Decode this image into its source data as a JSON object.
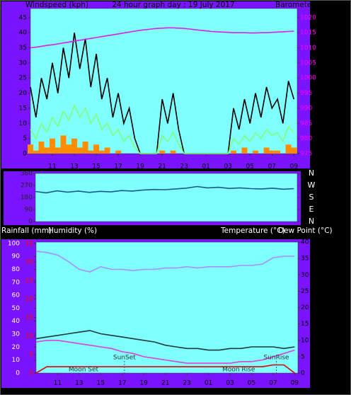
{
  "chart_data": [
    {
      "type": "line",
      "title": "24 hour graph day : 19 July 2017",
      "y_label": "Windspeed (kph)",
      "y2_label": "Barometer (hpa)",
      "xlim": [
        0,
        24.3
      ],
      "xticks": [
        {
          "value": 2,
          "label": "11"
        },
        {
          "value": 4,
          "label": "13"
        },
        {
          "value": 6,
          "label": "15"
        },
        {
          "value": 8,
          "label": "17"
        },
        {
          "value": 10,
          "label": "19"
        },
        {
          "value": 12,
          "label": "21"
        },
        {
          "value": 14,
          "label": "23"
        },
        {
          "value": 16,
          "label": "01"
        },
        {
          "value": 18,
          "label": "03"
        },
        {
          "value": 20,
          "label": "05"
        },
        {
          "value": 22,
          "label": "07"
        },
        {
          "value": 24,
          "label": "09"
        }
      ],
      "ylim": [
        0,
        48
      ],
      "yticks": [
        0,
        5,
        10,
        15,
        20,
        25,
        30,
        35,
        40,
        45
      ],
      "y2lim": [
        975,
        1023
      ],
      "y2ticks": [
        975,
        980,
        985,
        990,
        995,
        1000,
        1005,
        1010,
        1015,
        1020
      ],
      "x": [
        0,
        0.5,
        1,
        1.5,
        2,
        2.5,
        3,
        3.5,
        4,
        4.5,
        5,
        5.5,
        6,
        6.5,
        7,
        7.5,
        8,
        8.5,
        9,
        9.5,
        10,
        10.5,
        11,
        11.5,
        12,
        12.5,
        13,
        13.5,
        14,
        14.5,
        15,
        15.5,
        16,
        16.5,
        17,
        17.5,
        18,
        18.5,
        19,
        19.5,
        20,
        20.5,
        21,
        21.5,
        22,
        22.5,
        23,
        23.5,
        24
      ],
      "series": [
        {
          "color": "#000000",
          "style": "line",
          "axis": "y",
          "values": [
            22,
            12,
            25,
            18,
            30,
            20,
            35,
            25,
            40,
            28,
            38,
            22,
            33,
            18,
            25,
            12,
            20,
            10,
            15,
            5,
            0,
            0,
            0,
            0,
            18,
            10,
            20,
            8,
            0,
            0,
            0,
            0,
            0,
            0,
            0,
            0,
            0,
            15,
            8,
            18,
            10,
            20,
            12,
            22,
            15,
            18,
            10,
            24,
            18
          ]
        },
        {
          "color": "#80ff80",
          "style": "line",
          "axis": "y",
          "values": [
            8,
            5,
            10,
            7,
            12,
            9,
            14,
            11,
            16,
            12,
            15,
            10,
            13,
            8,
            10,
            6,
            8,
            4,
            6,
            2,
            0,
            0,
            0,
            0,
            6,
            4,
            7,
            3,
            0,
            0,
            0,
            0,
            0,
            0,
            0,
            0,
            0,
            5,
            3,
            6,
            4,
            7,
            5,
            8,
            6,
            7,
            4,
            9,
            7
          ]
        },
        {
          "color": "#ff8c00",
          "style": "bar",
          "axis": "y",
          "values": [
            3,
            1,
            4,
            2,
            5,
            2,
            6,
            3,
            5,
            2,
            4,
            1,
            3,
            1,
            2,
            0,
            1,
            0,
            0,
            0,
            0,
            0,
            0,
            0,
            1,
            0,
            1,
            0,
            0,
            0,
            0,
            0,
            0,
            0,
            0,
            0,
            0,
            1,
            0,
            2,
            0,
            1,
            0,
            2,
            1,
            1,
            0,
            3,
            2
          ]
        },
        {
          "color": "#e020e0",
          "style": "line",
          "axis": "y2",
          "values": [
            1010.0,
            1010.2,
            1010.5,
            1010.8,
            1011.0,
            1011.3,
            1011.6,
            1011.9,
            1012.2,
            1012.5,
            1012.8,
            1013.1,
            1013.4,
            1013.7,
            1014.0,
            1014.3,
            1014.6,
            1014.9,
            1015.2,
            1015.5,
            1015.8,
            1016.0,
            1016.2,
            1016.4,
            1016.5,
            1016.6,
            1016.6,
            1016.5,
            1016.4,
            1016.2,
            1016.0,
            1015.8,
            1015.6,
            1015.4,
            1015.3,
            1015.2,
            1015.1,
            1015.0,
            1015.0,
            1015.0,
            1014.9,
            1014.9,
            1015.0,
            1015.0,
            1015.1,
            1015.2,
            1015.3,
            1015.4,
            1015.5
          ]
        }
      ]
    },
    {
      "type": "line",
      "xlim": [
        0,
        24.3
      ],
      "ylim": [
        0,
        360
      ],
      "yticks": [
        0,
        90,
        180,
        270,
        360
      ],
      "y2lim": [
        0,
        360
      ],
      "y2ticks": [
        {
          "value": 0,
          "label": "N"
        },
        {
          "value": 90,
          "label": "E"
        },
        {
          "value": 180,
          "label": "S"
        },
        {
          "value": 270,
          "label": "W"
        },
        {
          "value": 360,
          "label": "N"
        }
      ],
      "x": [
        0,
        1,
        2,
        3,
        4,
        5,
        6,
        7,
        8,
        9,
        10,
        11,
        12,
        13,
        14,
        15,
        16,
        17,
        18,
        19,
        20,
        21,
        22,
        23,
        24
      ],
      "series": [
        {
          "color": "#1a5a8a",
          "style": "line",
          "axis": "y",
          "values": [
            225,
            215,
            230,
            220,
            228,
            218,
            226,
            222,
            232,
            228,
            236,
            240,
            238,
            244,
            250,
            262,
            252,
            256,
            248,
            252,
            246,
            244,
            250,
            242,
            246
          ]
        }
      ]
    },
    {
      "type": "line",
      "xlim": [
        0,
        24.3
      ],
      "xticks": [
        {
          "value": 2,
          "label": "11"
        },
        {
          "value": 4,
          "label": "13"
        },
        {
          "value": 6,
          "label": "15"
        },
        {
          "value": 8,
          "label": "17"
        },
        {
          "value": 10,
          "label": "19"
        },
        {
          "value": 12,
          "label": "21"
        },
        {
          "value": 14,
          "label": "23"
        },
        {
          "value": 16,
          "label": "01"
        },
        {
          "value": 18,
          "label": "03"
        },
        {
          "value": 20,
          "label": "05"
        },
        {
          "value": 22,
          "label": "07"
        },
        {
          "value": 24,
          "label": "09"
        }
      ],
      "ylim": [
        0,
        101
      ],
      "yticks": [
        0,
        10,
        20,
        30,
        40,
        50,
        60,
        70,
        80,
        90,
        100
      ],
      "y3lim": [
        0,
        35.4
      ],
      "y3ticks": [
        0,
        5,
        10,
        15,
        20,
        25,
        30,
        35
      ],
      "y2lim": [
        0,
        40
      ],
      "y2ticks": [
        0,
        5,
        10,
        15,
        20,
        25,
        30,
        35,
        40
      ],
      "x": [
        0,
        1,
        2,
        3,
        4,
        5,
        6,
        7,
        8,
        9,
        10,
        11,
        12,
        13,
        14,
        15,
        16,
        17,
        18,
        19,
        20,
        21,
        22,
        23,
        24
      ],
      "series": [
        {
          "name": "Rainfall (mm)",
          "color": "#e00000",
          "style": "line",
          "axis": "y3",
          "values": [
            0,
            1.7,
            1.7,
            1.7,
            1.7,
            1.7,
            1.7,
            1.7,
            1.7,
            1.7,
            1.7,
            1.7,
            1.7,
            1.7,
            1.7,
            1.7,
            1.7,
            1.7,
            1.7,
            1.7,
            1.7,
            1.7,
            2.2,
            2.2,
            0
          ]
        },
        {
          "name": "Humidity (%)",
          "color": "#a890ff",
          "style": "line",
          "axis": "y",
          "values": [
            94,
            93,
            91,
            86,
            80,
            78,
            82,
            80,
            80,
            79,
            80,
            80,
            81,
            81,
            82,
            81,
            82,
            82,
            82,
            83,
            83,
            84,
            89,
            90,
            90
          ]
        },
        {
          "name": "Temperature (°C)",
          "color": "#1a3a3a",
          "style": "line",
          "axis": "y2",
          "values": [
            10.5,
            11,
            11.5,
            12,
            12.5,
            13,
            12,
            11.5,
            11,
            10.5,
            10,
            9.5,
            8.5,
            8,
            7.5,
            7.5,
            7,
            7,
            7.5,
            7.5,
            8,
            8,
            8,
            7.5,
            8
          ]
        },
        {
          "name": "Dew Point (°C)",
          "color": "#e040e0",
          "style": "line",
          "axis": "y2",
          "values": [
            9.5,
            10,
            10,
            9.5,
            9,
            8.5,
            8,
            7.5,
            6.5,
            6,
            5,
            4.5,
            4,
            3.5,
            3,
            3,
            3,
            3,
            3,
            3.5,
            3.5,
            4,
            5,
            6,
            7
          ]
        }
      ],
      "annotations": [
        {
          "text": "Moon Set",
          "x": 4.4
        },
        {
          "text": "SunSet",
          "x": 8.2
        },
        {
          "text": "Moon Rise",
          "x": 18.8
        },
        {
          "text": "SunRise",
          "x": 22.3
        }
      ]
    }
  ]
}
